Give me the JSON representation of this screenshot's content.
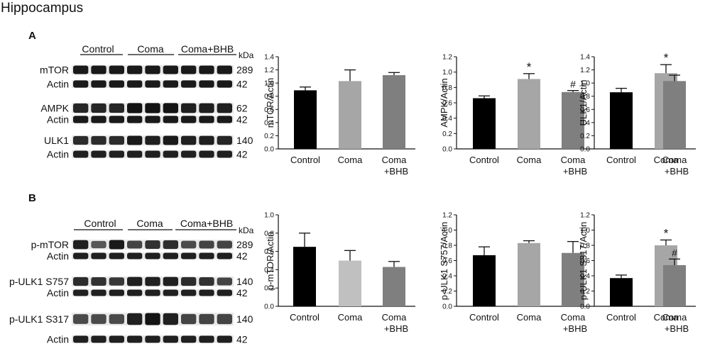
{
  "figure": {
    "title": "Hippocampus",
    "panels": [
      {
        "label": "A",
        "group_labels": [
          "Control",
          "Coma",
          "Coma+BHB"
        ],
        "kda_label": "kDa",
        "blots": [
          {
            "protein": "mTOR",
            "kda": "289",
            "intensity": [
              0.95,
              0.95,
              0.95,
              0.95,
              0.95,
              0.95,
              0.95,
              0.95,
              0.95
            ]
          },
          {
            "protein": "Actin",
            "kda": "42",
            "intensity": [
              0.95,
              0.95,
              0.95,
              0.95,
              0.95,
              0.95,
              0.95,
              0.95,
              0.95
            ]
          },
          {
            "protein": "AMPK",
            "kda": "62",
            "intensity": [
              0.85,
              0.85,
              0.85,
              1.0,
              1.0,
              1.0,
              0.9,
              0.9,
              0.9
            ]
          },
          {
            "protein": "Actin",
            "kda": "42",
            "intensity": [
              0.95,
              0.95,
              0.95,
              0.95,
              0.95,
              0.95,
              0.95,
              0.95,
              0.95
            ]
          },
          {
            "protein": "ULK1",
            "kda": "140",
            "intensity": [
              0.8,
              0.8,
              0.8,
              0.95,
              0.9,
              0.95,
              0.9,
              0.9,
              0.85
            ]
          },
          {
            "protein": "Actin",
            "kda": "42",
            "intensity": [
              0.9,
              0.9,
              0.9,
              0.9,
              0.9,
              0.9,
              0.9,
              0.9,
              0.9
            ]
          }
        ]
      },
      {
        "label": "B",
        "group_labels": [
          "Control",
          "Coma",
          "Coma+BHB"
        ],
        "kda_label": "kDa",
        "blots": [
          {
            "protein": "p-mTOR",
            "kda": "289",
            "intensity": [
              0.9,
              0.45,
              0.95,
              0.6,
              0.75,
              0.8,
              0.55,
              0.6,
              0.6
            ]
          },
          {
            "protein": "Actin",
            "kda": "42",
            "intensity": [
              0.9,
              0.9,
              0.9,
              0.9,
              0.9,
              0.9,
              0.9,
              0.9,
              0.9
            ]
          },
          {
            "protein": "p-ULK1 S757",
            "kda": "140",
            "intensity": [
              0.8,
              0.75,
              0.7,
              0.9,
              0.9,
              0.9,
              0.8,
              0.75,
              0.6
            ]
          },
          {
            "protein": "Actin",
            "kda": "42",
            "intensity": [
              0.9,
              0.9,
              0.9,
              0.9,
              0.9,
              0.9,
              0.9,
              0.9,
              0.9
            ]
          },
          {
            "protein": "p-ULK1 S317",
            "kda": "140",
            "intensity": [
              0.55,
              0.55,
              0.55,
              0.9,
              1.0,
              0.9,
              0.6,
              0.6,
              0.6
            ]
          },
          {
            "protein": "Actin",
            "kda": "42",
            "intensity": [
              0.9,
              0.9,
              0.9,
              0.9,
              0.9,
              0.9,
              0.9,
              0.9,
              0.9
            ]
          }
        ]
      }
    ]
  },
  "chart_data": [
    {
      "type": "bar",
      "panel": "A",
      "categories": [
        "Control",
        "Coma",
        "Coma\n+BHB"
      ],
      "values": [
        0.89,
        1.03,
        1.12
      ],
      "errors": [
        0.05,
        0.17,
        0.04
      ],
      "annotations": [
        "",
        "",
        ""
      ],
      "ylabel": "mTOR/Actin",
      "ylim": [
        0,
        1.4
      ],
      "yticks": [
        "0.0",
        "0.2",
        "0.4",
        "0.6",
        "0.8",
        "1.0",
        "1.2",
        "1.4"
      ],
      "colors": [
        "#000000",
        "#a6a6a6",
        "#7f7f7f"
      ]
    },
    {
      "type": "bar",
      "panel": "A",
      "categories": [
        "Control",
        "Coma",
        "Coma\n+BHB"
      ],
      "values": [
        0.66,
        0.91,
        0.74
      ],
      "errors": [
        0.03,
        0.07,
        0.02
      ],
      "annotations": [
        "",
        "*",
        "#"
      ],
      "ylabel": "AMPK/Actin",
      "ylim": [
        0,
        1.2
      ],
      "yticks": [
        "0.0",
        "0.2",
        "0.4",
        "0.6",
        "0.8",
        "1.0",
        "1.2"
      ],
      "colors": [
        "#000000",
        "#a6a6a6",
        "#7f7f7f"
      ]
    },
    {
      "type": "bar",
      "panel": "A",
      "categories": [
        "Control",
        "Coma",
        "Coma\n+BHB"
      ],
      "values": [
        0.86,
        1.15,
        1.03
      ],
      "errors": [
        0.06,
        0.13,
        0.09
      ],
      "annotations": [
        "",
        "*",
        ""
      ],
      "ylabel": "ULK1/Actin",
      "ylim": [
        0,
        1.4
      ],
      "yticks": [
        "0.0",
        "0.2",
        "0.4",
        "0.6",
        "0.8",
        "1.0",
        "1.2",
        "1.4"
      ],
      "colors": [
        "#000000",
        "#a6a6a6",
        "#7f7f7f"
      ]
    },
    {
      "type": "bar",
      "panel": "B",
      "categories": [
        "Control",
        "Coma",
        "Coma\n+BHB"
      ],
      "values": [
        0.65,
        0.5,
        0.43
      ],
      "errors": [
        0.15,
        0.11,
        0.06
      ],
      "annotations": [
        "",
        "",
        ""
      ],
      "ylabel": "p-mTOR/Actin",
      "ylim": [
        0,
        1.0
      ],
      "yticks": [
        "0.0",
        "0.2",
        "0.4",
        "0.6",
        "0.8",
        "1.0"
      ],
      "colors": [
        "#000000",
        "#c0c0c0",
        "#7f7f7f"
      ]
    },
    {
      "type": "bar",
      "panel": "B",
      "categories": [
        "Control",
        "Coma",
        "Coma\n+BHB"
      ],
      "values": [
        0.67,
        0.83,
        0.7
      ],
      "errors": [
        0.11,
        0.03,
        0.15
      ],
      "annotations": [
        "",
        "",
        ""
      ],
      "ylabel": "p-ULK1 S757/Actin",
      "ylim": [
        0,
        1.2
      ],
      "yticks": [
        "0.0",
        "0.2",
        "0.4",
        "0.6",
        "0.8",
        "1.0",
        "1.2"
      ],
      "colors": [
        "#000000",
        "#a6a6a6",
        "#7f7f7f"
      ]
    },
    {
      "type": "bar",
      "panel": "B",
      "categories": [
        "Control",
        "Coma",
        "Coma\n+BHB"
      ],
      "values": [
        0.37,
        0.8,
        0.54
      ],
      "errors": [
        0.04,
        0.07,
        0.08
      ],
      "annotations": [
        "",
        "*",
        "#"
      ],
      "ylabel": "p-ULK1 S317/Actin",
      "ylim": [
        0,
        1.2
      ],
      "yticks": [
        "0.0",
        "0.2",
        "0.4",
        "0.6",
        "0.8",
        "1.0",
        "1.2"
      ],
      "colors": [
        "#000000",
        "#a6a6a6",
        "#7f7f7f"
      ]
    }
  ]
}
